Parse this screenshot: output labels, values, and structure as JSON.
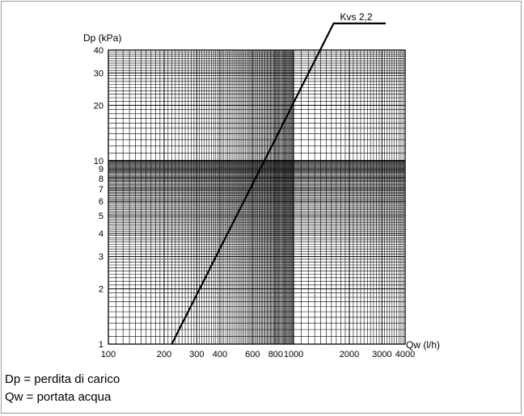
{
  "chart_data": {
    "type": "line",
    "xlabel": "Qw (l/h)",
    "ylabel": "Dp (kPa)",
    "xscale": "log",
    "yscale": "log",
    "xlim": [
      100,
      4000
    ],
    "ylim": [
      1,
      40
    ],
    "xticks": [
      100,
      200,
      300,
      400,
      600,
      800,
      1000,
      2000,
      3000,
      4000
    ],
    "xtick_labels": [
      "100",
      "200",
      "300",
      "400",
      "600",
      "800",
      "1000",
      "2000",
      "3000",
      "4000"
    ],
    "yticks": [
      1,
      2,
      3,
      4,
      5,
      6,
      7,
      8,
      9,
      10,
      20,
      30,
      40
    ],
    "ytick_labels": [
      "1",
      "2",
      "3",
      "4",
      "5",
      "6",
      "7",
      "8",
      "9",
      "10",
      "20",
      "30",
      "40"
    ],
    "grid": true,
    "series": [
      {
        "name": "Kvs 2,2",
        "x": [
          220,
          300,
          400,
          600,
          800,
          1000,
          1391
        ],
        "y": [
          1,
          1.86,
          3.31,
          7.44,
          13.2,
          20.7,
          40
        ]
      }
    ],
    "line_color": "#000000",
    "grid_color": "#000000"
  },
  "legend": {
    "dp": "Dp = perdita di carico",
    "qw": "Qw = portata acqua"
  }
}
